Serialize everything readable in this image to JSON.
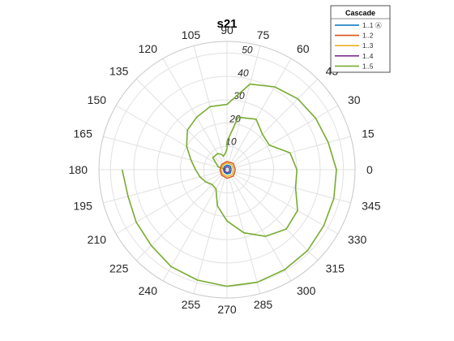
{
  "chart_data": {
    "type": "line",
    "title": "s21",
    "coordinate_system": "polar",
    "theta_unit": "degrees",
    "theta_ticks": [
      0,
      15,
      30,
      45,
      60,
      75,
      90,
      105,
      120,
      135,
      150,
      165,
      180,
      195,
      210,
      225,
      240,
      255,
      270,
      285,
      300,
      315,
      330,
      345
    ],
    "theta_tick_labels": [
      "0",
      "15",
      "30",
      "45",
      "60",
      "75",
      "90",
      "105",
      "120",
      "135",
      "150",
      "165",
      "180",
      "195",
      "210",
      "225",
      "240",
      "255",
      "270",
      "285",
      "300",
      "315",
      "330",
      "345"
    ],
    "r_ticks": [
      10,
      20,
      30,
      40,
      50
    ],
    "r_tick_labels": [
      "10",
      "20",
      "30",
      "40",
      "50"
    ],
    "rlim": [
      0,
      55
    ],
    "grid": true,
    "legend": {
      "title": "Cascade",
      "placement": "top-right",
      "entries": [
        "1..1 Ⓐ",
        "1..2",
        "1..3",
        "1..4",
        "1..5"
      ]
    },
    "series": [
      {
        "name": "1..1 Ⓐ",
        "color": "#0072BD",
        "theta": [
          0,
          45,
          90,
          135,
          180,
          225,
          270,
          315,
          360
        ],
        "r": [
          1.8,
          2.1,
          2.0,
          1.7,
          1.5,
          1.6,
          1.8,
          2.0,
          1.8
        ]
      },
      {
        "name": "1..2",
        "color": "#D95319",
        "theta": [
          0,
          45,
          90,
          135,
          180,
          225,
          270,
          315,
          360
        ],
        "r": [
          3.6,
          3.8,
          3.5,
          3.2,
          3.0,
          3.3,
          3.7,
          3.9,
          3.6
        ]
      },
      {
        "name": "1..3",
        "color": "#EDB120",
        "theta": [
          0,
          45,
          90,
          135,
          180,
          225,
          270,
          315,
          360
        ],
        "r": [
          2.8,
          3.0,
          2.9,
          2.6,
          2.5,
          2.7,
          2.9,
          3.1,
          2.8
        ]
      },
      {
        "name": "1..4",
        "color": "#7E2F8E",
        "theta": [
          0,
          45,
          90,
          135,
          180,
          225,
          270,
          315,
          360
        ],
        "r": [
          1.2,
          1.4,
          1.3,
          1.1,
          1.0,
          1.1,
          1.3,
          1.4,
          1.2
        ]
      },
      {
        "name": "1..5",
        "color": "#77AC30",
        "theta": [
          177,
          162,
          140,
          120,
          110,
          105,
          96,
          90,
          90,
          78,
          60,
          45,
          30,
          15,
          0,
          345,
          330,
          315,
          300,
          285,
          270,
          255,
          240,
          225,
          210,
          195,
          180,
          165,
          150,
          135,
          120,
          105,
          90,
          75,
          60,
          45,
          30,
          15,
          0,
          345,
          330,
          315,
          300,
          285,
          270,
          255,
          240,
          225,
          210,
          195,
          180
        ],
        "r": [
          0.5,
          4,
          8,
          8,
          7,
          6,
          7,
          9,
          12,
          23,
          25,
          21.5,
          21,
          28,
          30,
          30.5,
          35,
          36,
          33,
          28,
          22,
          16,
          9.5,
          9,
          10.5,
          12,
          13.5,
          16,
          20,
          24,
          26,
          28,
          28,
          38,
          41,
          43,
          44,
          45,
          47,
          47.5,
          48,
          49,
          49.5,
          50,
          50,
          49,
          48,
          46,
          45,
          44,
          45
        ]
      }
    ]
  }
}
